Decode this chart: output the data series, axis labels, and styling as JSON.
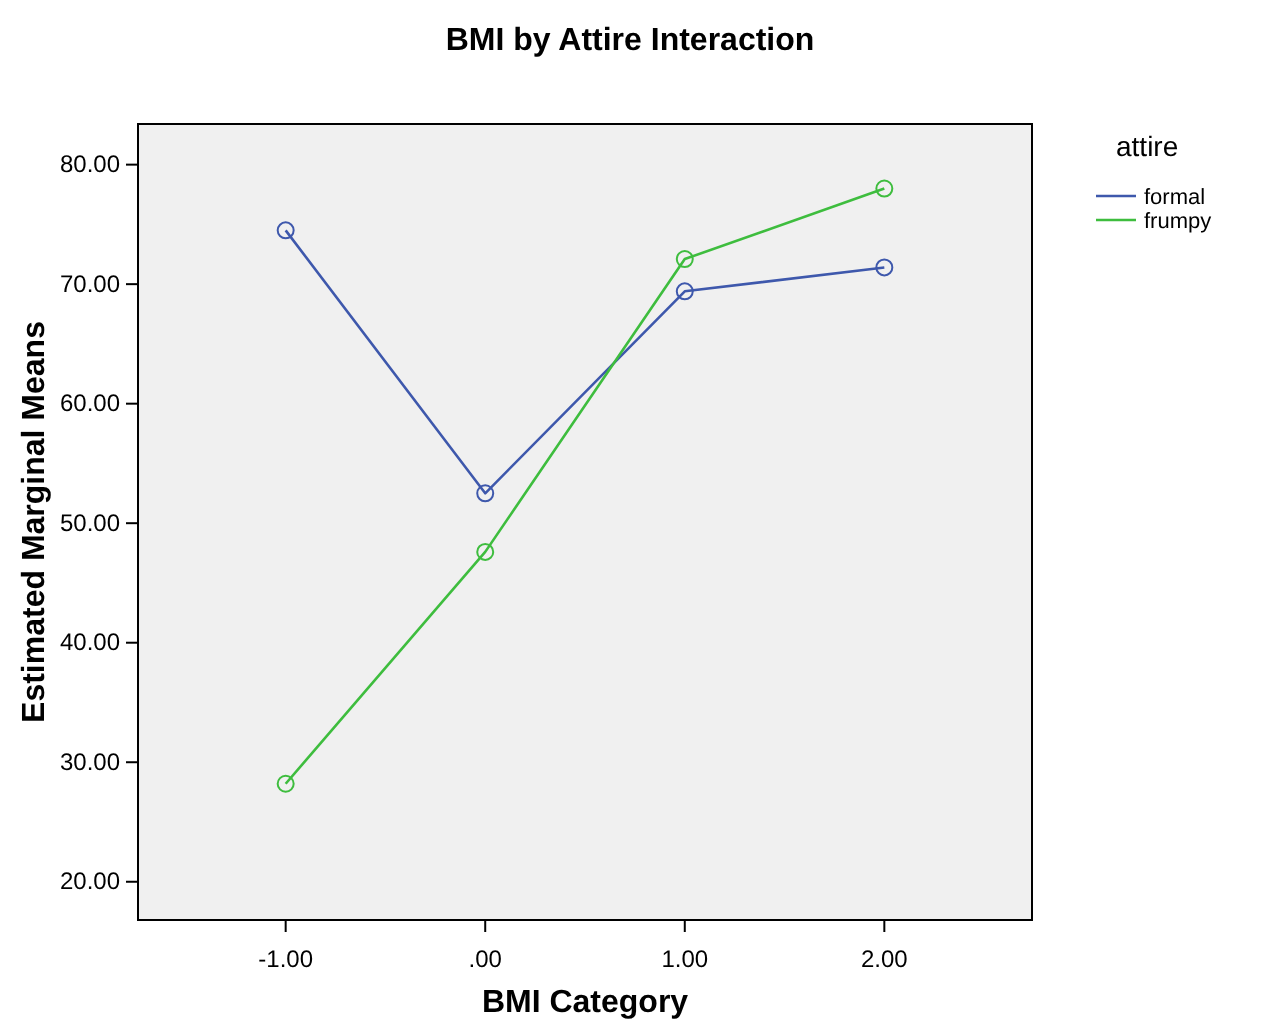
{
  "chart_data": {
    "type": "line",
    "title": "BMI by Attire Interaction",
    "xlabel": "BMI Category",
    "ylabel": "Estimated Marginal Means",
    "legend_title": "attire",
    "categories": [
      "-1.00",
      ".00",
      "1.00",
      "2.00"
    ],
    "series": [
      {
        "name": "formal",
        "color": "#3e58ac",
        "values": [
          74.5,
          52.5,
          69.4,
          71.4
        ]
      },
      {
        "name": "frumpy",
        "color": "#3ebd3e",
        "values": [
          28.2,
          47.6,
          72.1,
          78.0
        ]
      }
    ],
    "ylim": [
      16.8,
      83.4
    ],
    "yticks": [
      {
        "value": 20,
        "label": "20.00"
      },
      {
        "value": 30,
        "label": "30.00"
      },
      {
        "value": 40,
        "label": "40.00"
      },
      {
        "value": 50,
        "label": "50.00"
      },
      {
        "value": 60,
        "label": "60.00"
      },
      {
        "value": 70,
        "label": "70.00"
      },
      {
        "value": 80,
        "label": "80.00"
      }
    ],
    "grid": false,
    "legend": "top right",
    "marker": "circle",
    "line_style": "solid"
  }
}
